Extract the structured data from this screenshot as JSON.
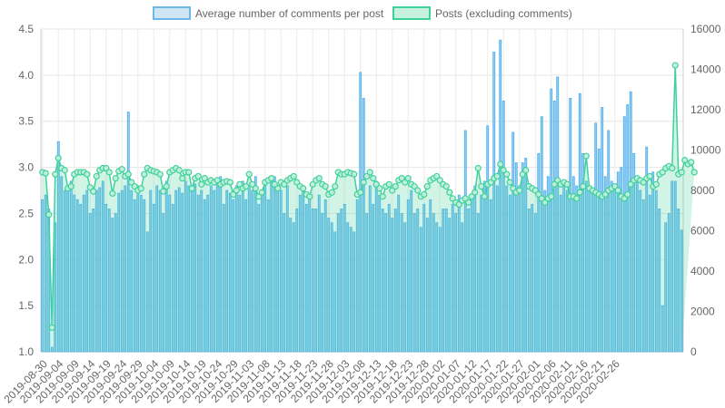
{
  "chart_data": {
    "type": "bar",
    "legend": {
      "position": "top",
      "items": [
        {
          "label": "Average number of comments per post",
          "fill": "#cfe5f6",
          "stroke": "#6cb8e6"
        },
        {
          "label": "Posts (excluding comments)",
          "fill": "#c6f1e0",
          "stroke": "#3fd19a"
        }
      ]
    },
    "x_tick_labels": [
      "2019-08-30",
      "2019-09-04",
      "2019-09-09",
      "2019-09-14",
      "2019-09-19",
      "2019-09-24",
      "2019-09-29",
      "2019-10-04",
      "2019-10-09",
      "2019-10-14",
      "2019-10-19",
      "2019-10-24",
      "2019-10-29",
      "2019-11-03",
      "2019-11-08",
      "2019-11-13",
      "2019-11-18",
      "2019-11-23",
      "2019-11-28",
      "2019-12-03",
      "2019-12-08",
      "2019-12-13",
      "2019-12-18",
      "2019-12-23",
      "2019-12-28",
      "2020-01-02",
      "2020-01-07",
      "2020-01-12",
      "2020-01-17",
      "2020-01-22",
      "2020-01-27",
      "2020-02-01",
      "2020-02-06",
      "2020-02-11",
      "2020-02-16",
      "2020-02-21",
      "2020-02-26"
    ],
    "y_left": {
      "min": 1.0,
      "max": 4.5,
      "ticks": [
        "1.0",
        "1.5",
        "2.0",
        "2.5",
        "3.0",
        "3.5",
        "4.0",
        "4.5"
      ]
    },
    "y_right": {
      "min": 0,
      "max": 16000,
      "ticks": [
        "0",
        "2000",
        "4000",
        "6000",
        "8000",
        "10000",
        "12000",
        "14000",
        "16000"
      ]
    },
    "grid": true,
    "series": [
      {
        "name": "Average number of comments per post",
        "type": "bar",
        "axis": "left",
        "color": "#36a2eb",
        "values": [
          2.65,
          2.7,
          2.55,
          1.05,
          2.4,
          3.28,
          2.9,
          2.75,
          2.8,
          2.85,
          2.7,
          2.65,
          2.6,
          2.7,
          2.75,
          2.5,
          2.55,
          2.75,
          2.78,
          2.85,
          2.6,
          2.55,
          2.45,
          2.5,
          2.72,
          2.75,
          2.8,
          3.6,
          2.75,
          2.65,
          2.8,
          2.7,
          2.65,
          2.3,
          2.75,
          2.6,
          2.8,
          2.75,
          2.5,
          2.85,
          2.7,
          2.6,
          2.75,
          2.78,
          2.72,
          2.85,
          2.8,
          2.75,
          2.82,
          2.7,
          2.75,
          2.65,
          2.7,
          2.8,
          2.75,
          2.85,
          2.9,
          2.6,
          2.75,
          2.72,
          2.65,
          2.8,
          2.7,
          2.85,
          2.65,
          2.8,
          2.75,
          2.9,
          2.6,
          2.7,
          2.8,
          2.65,
          2.85,
          2.9,
          2.8,
          2.75,
          2.5,
          2.8,
          2.45,
          2.4,
          2.55,
          2.7,
          2.75,
          2.6,
          2.65,
          2.55,
          2.55,
          2.7,
          2.5,
          2.65,
          2.45,
          2.4,
          2.3,
          2.5,
          2.55,
          2.6,
          2.4,
          2.35,
          2.3,
          2.65,
          4.03,
          3.75,
          2.5,
          2.8,
          2.6,
          2.85,
          2.7,
          2.55,
          2.5,
          2.6,
          2.45,
          2.55,
          2.7,
          2.5,
          2.4,
          2.65,
          2.75,
          2.5,
          2.55,
          2.35,
          2.6,
          2.45,
          2.65,
          2.5,
          2.4,
          2.35,
          2.55,
          2.55,
          2.45,
          2.6,
          2.5,
          2.7,
          2.4,
          3.4,
          2.55,
          2.7,
          2.8,
          2.5,
          2.7,
          2.85,
          3.45,
          2.65,
          4.25,
          2.8,
          4.38,
          3.72,
          2.8,
          2.7,
          3.38,
          3.05,
          2.8,
          3.05,
          3.1,
          2.55,
          2.6,
          2.5,
          3.15,
          3.55,
          2.75,
          2.9,
          3.85,
          3.72,
          3.98,
          2.7,
          2.8,
          2.75,
          3.75,
          2.9,
          2.8,
          3.8,
          3.15,
          2.85,
          2.75,
          2.75,
          3.48,
          3.2,
          3.65,
          2.9,
          3.4,
          2.85,
          2.8,
          2.95,
          3.0,
          3.55,
          3.68,
          3.82,
          3.15,
          2.85,
          2.75,
          2.65,
          3.22,
          2.7,
          2.95,
          2.75,
          2.55,
          1.5,
          2.4,
          2.5,
          2.85,
          2.85,
          2.55,
          2.32
        ]
      },
      {
        "name": "Posts (excluding comments)",
        "type": "area",
        "axis": "right",
        "color": "#3fd19a",
        "values": [
          8900,
          8850,
          6800,
          1200,
          8800,
          9600,
          9100,
          9000,
          8100,
          8200,
          8800,
          8900,
          8900,
          8900,
          8800,
          8150,
          7950,
          8700,
          9000,
          9100,
          9100,
          8900,
          7850,
          8600,
          8950,
          9050,
          8700,
          8800,
          8400,
          8200,
          8000,
          8100,
          8800,
          9100,
          9000,
          8950,
          8900,
          8800,
          7950,
          8200,
          8900,
          9000,
          9100,
          9000,
          8600,
          8900,
          8900,
          8100,
          8600,
          8700,
          8300,
          8600,
          8400,
          8500,
          8400,
          8500,
          8300,
          8400,
          8450,
          8400,
          7800,
          8000,
          8300,
          8100,
          8200,
          8800,
          8300,
          8100,
          7700,
          7900,
          8400,
          8500,
          8600,
          8300,
          8100,
          8400,
          8300,
          8500,
          8600,
          8700,
          8400,
          8200,
          8100,
          7800,
          7700,
          8300,
          8500,
          8600,
          8300,
          8200,
          7800,
          7900,
          8200,
          8900,
          8800,
          8800,
          8900,
          8850,
          8800,
          7800,
          7900,
          8400,
          8700,
          8900,
          8600,
          8300,
          8100,
          7700,
          8200,
          8300,
          8000,
          8200,
          8500,
          8600,
          8400,
          8600,
          8300,
          8200,
          8000,
          7700,
          7800,
          8200,
          8500,
          8600,
          8700,
          8500,
          8300,
          8200,
          7900,
          7600,
          7400,
          7300,
          7500,
          7600,
          7400,
          7700,
          7900,
          9100,
          8200,
          7700,
          8300,
          8400,
          8600,
          8700,
          9300,
          9000,
          8800,
          8400,
          8100,
          7900,
          8000,
          8800,
          9000,
          8200,
          8100,
          8000,
          7800,
          7600,
          7400,
          7600,
          7700,
          8300,
          8500,
          8300,
          8400,
          8300,
          7700,
          7700,
          7600,
          7900,
          8200,
          9700,
          8100,
          8000,
          7900,
          7800,
          7700,
          7800,
          8000,
          8100,
          8200,
          8000,
          7700,
          7600,
          7800,
          8300,
          8500,
          8600,
          8500,
          8400,
          8600,
          8700,
          8200,
          8300,
          8800,
          8900,
          9100,
          9200,
          9100,
          14200,
          8800,
          8900,
          9500,
          9300,
          9400,
          8900
        ]
      }
    ]
  }
}
